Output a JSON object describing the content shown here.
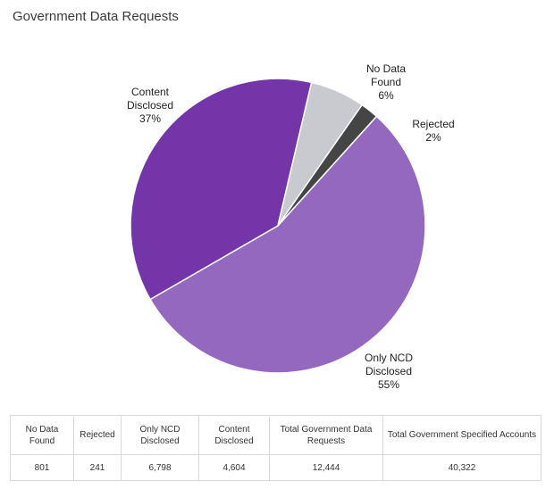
{
  "page": {
    "title": "Government Data Requests"
  },
  "chart_data": {
    "type": "pie",
    "title": "Government Data Requests",
    "slices": [
      {
        "label": "Only NCD Disclosed",
        "label_lines": [
          "Only NCD",
          "Disclosed"
        ],
        "percent_text": "55%",
        "value": 55,
        "color": "#9468bf"
      },
      {
        "label": "Content Disclosed",
        "label_lines": [
          "Content",
          "Disclosed"
        ],
        "percent_text": "37%",
        "value": 37,
        "color": "#7435a8"
      },
      {
        "label": "No Data Found",
        "label_lines": [
          "No Data",
          "Found"
        ],
        "percent_text": "6%",
        "value": 6,
        "color": "#c9cad0"
      },
      {
        "label": "Rejected",
        "label_lines": [
          "Rejected"
        ],
        "percent_text": "2%",
        "value": 2,
        "color": "#454545"
      }
    ]
  },
  "table": {
    "headers": [
      "No Data Found",
      "Rejected",
      "Only NCD Disclosed",
      "Content Disclosed",
      "Total Government Data Requests",
      "Total Government Specified Accounts"
    ],
    "values": [
      "801",
      "241",
      "6,798",
      "4,604",
      "12,444",
      "40,322"
    ]
  }
}
